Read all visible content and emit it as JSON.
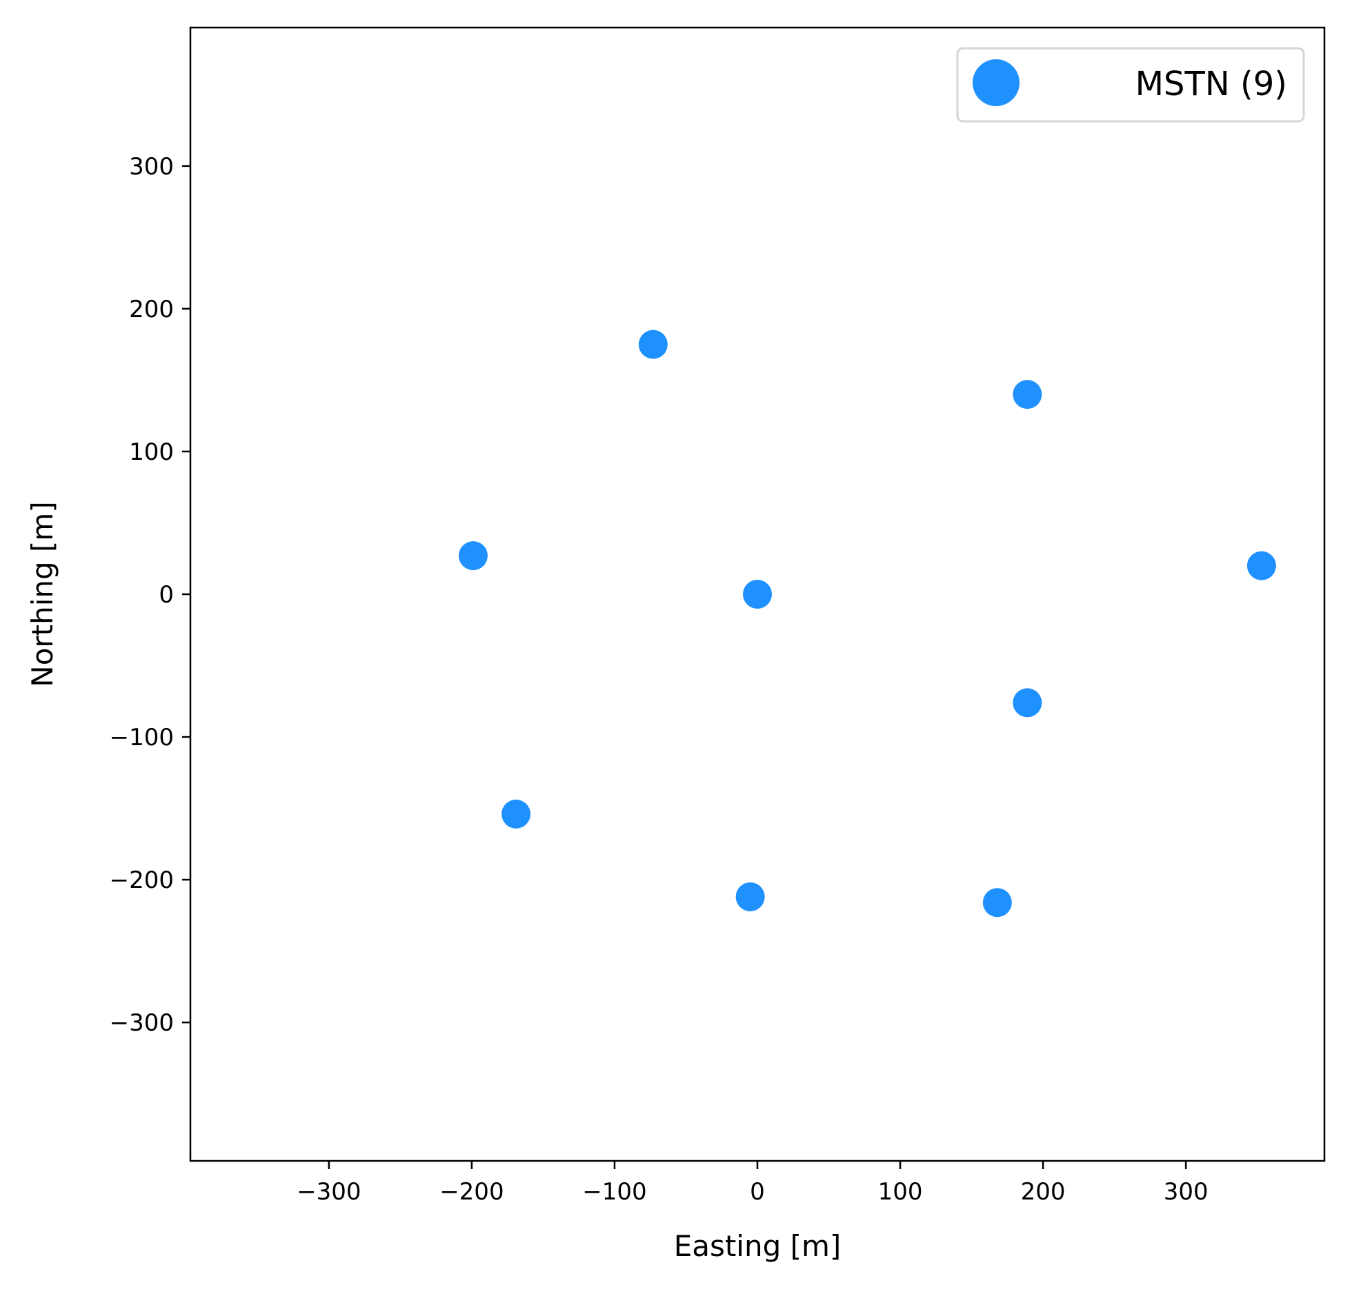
{
  "chart_data": {
    "type": "scatter",
    "title": "",
    "xlabel": "Easting [m]",
    "ylabel": "Northing [m]",
    "xlim": [
      -397,
      397
    ],
    "ylim": [
      -397,
      397
    ],
    "xticks": [
      -300,
      -200,
      -100,
      0,
      100,
      200,
      300
    ],
    "yticks": [
      -300,
      -200,
      -100,
      0,
      100,
      200,
      300
    ],
    "xtick_labels": [
      "−300",
      "−200",
      "−100",
      "0",
      "100",
      "200",
      "300"
    ],
    "ytick_labels": [
      "−300",
      "−200",
      "−100",
      "0",
      "100",
      "200",
      "300"
    ],
    "grid": false,
    "legend": {
      "position": "top-right",
      "entries": [
        "MSTN (9)"
      ]
    },
    "series": [
      {
        "name": "MSTN (9)",
        "color": "#1f91fe",
        "marker": "circle",
        "points": [
          {
            "x": -73,
            "y": 175
          },
          {
            "x": 189,
            "y": 140
          },
          {
            "x": -199,
            "y": 27
          },
          {
            "x": 0,
            "y": 0
          },
          {
            "x": 353,
            "y": 20
          },
          {
            "x": 189,
            "y": -76
          },
          {
            "x": -169,
            "y": -154
          },
          {
            "x": -5,
            "y": -212
          },
          {
            "x": 168,
            "y": -216
          }
        ]
      }
    ]
  }
}
